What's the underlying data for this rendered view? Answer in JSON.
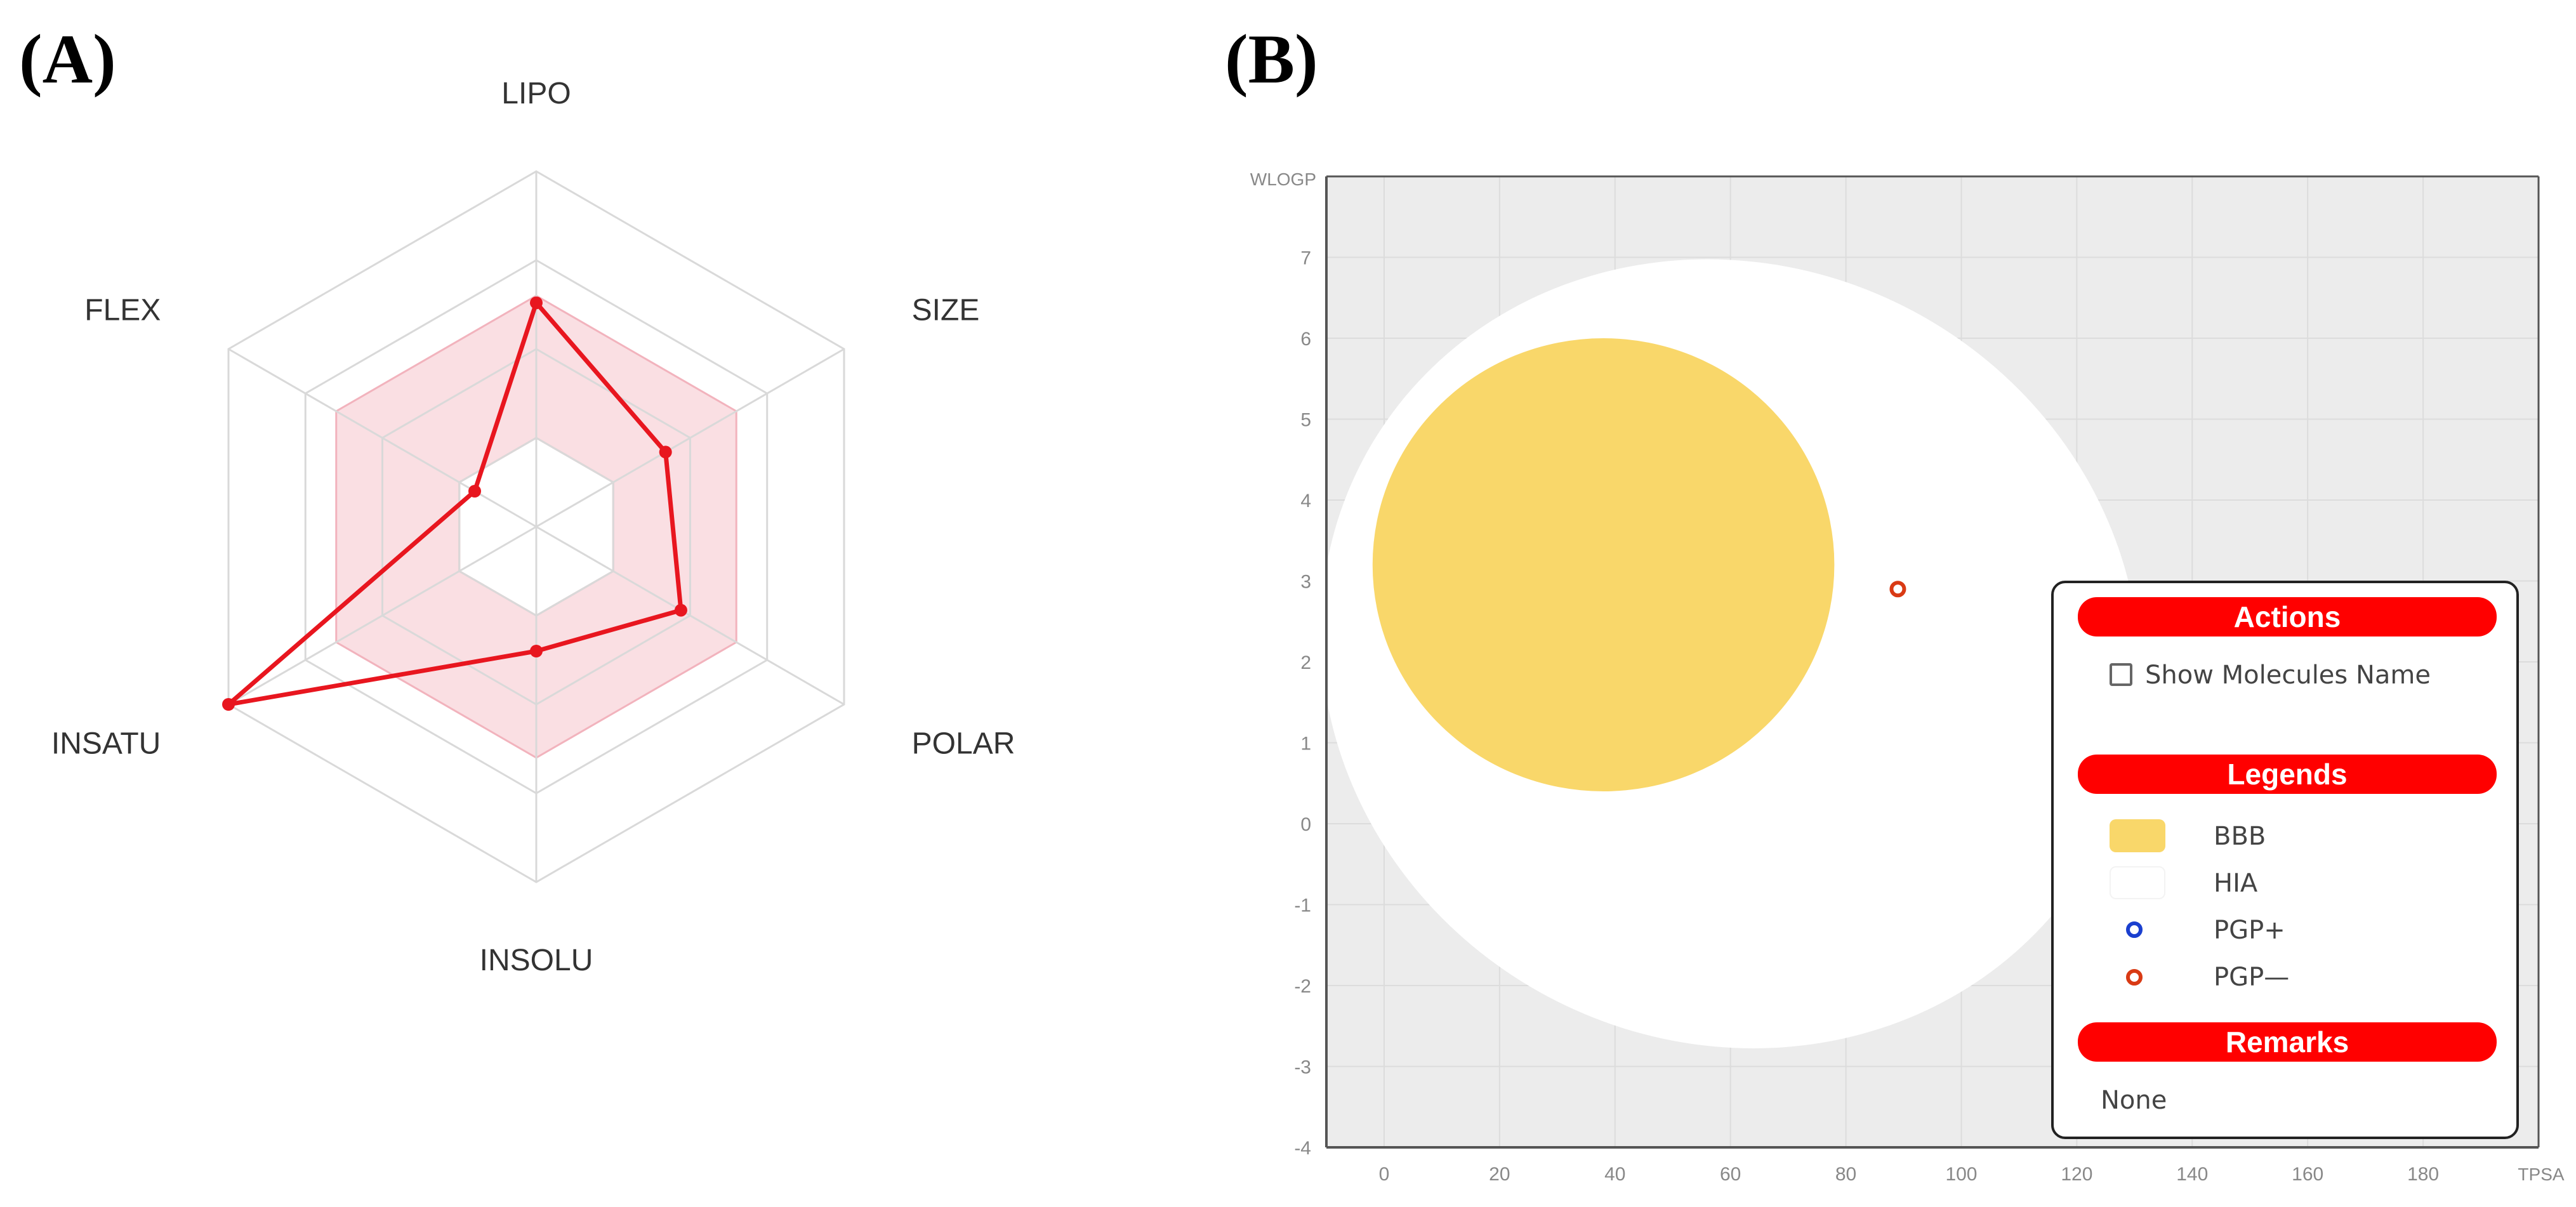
{
  "panel_a": {
    "letter": "(A)"
  },
  "panel_b": {
    "letter": "(B)"
  },
  "chart_data": [
    {
      "type": "radar",
      "axes": [
        "LIPO",
        "SIZE",
        "POLAR",
        "INSOLU",
        "INSATU",
        "FLEX"
      ],
      "values": [
        0.63,
        0.42,
        0.47,
        0.35,
        1.0,
        0.2
      ],
      "optimal_range": {
        "inner": 0.25,
        "outer": 0.65
      },
      "scale_max": 1.0,
      "colors": {
        "line": "#e8161f",
        "band": "#f6c5cc",
        "grid": "#d9d9d9"
      }
    },
    {
      "type": "scatter",
      "xlabel": "TPSA",
      "ylabel": "WLOGP",
      "xlim": [
        -10,
        200
      ],
      "ylim": [
        -4,
        8
      ],
      "xticks": [
        0,
        20,
        40,
        60,
        80,
        100,
        120,
        140,
        160,
        180
      ],
      "yticks": [
        -4,
        -3,
        -2,
        -1,
        0,
        1,
        2,
        3,
        4,
        5,
        6,
        7
      ],
      "grid": true,
      "points": [
        {
          "x": 89,
          "y": 2.9,
          "class": "PGP—"
        }
      ],
      "regions": [
        {
          "name": "BBB",
          "color": "#f9d76a",
          "center": [
            38,
            3.2
          ],
          "rx": 40,
          "ry": 2.8
        },
        {
          "name": "HIA",
          "color": "#ffffff",
          "center": [
            60,
            2.1
          ],
          "rx": 72,
          "ry": 4.8,
          "rotation_deg": -28
        }
      ],
      "colors": {
        "background": "#ececec",
        "grid": "#dcdcdc",
        "pgp_plus": "#1a3fcf",
        "pgp_minus": "#d93a14"
      }
    }
  ],
  "legend_panel": {
    "actions_title": "Actions",
    "show_names_label": "Show Molecules Name",
    "legends_title": "Legends",
    "entries": [
      {
        "label": "BBB"
      },
      {
        "label": "HIA"
      },
      {
        "label": "PGP+"
      },
      {
        "label": "PGP—"
      }
    ],
    "remarks_title": "Remarks",
    "remarks_text": "None"
  }
}
